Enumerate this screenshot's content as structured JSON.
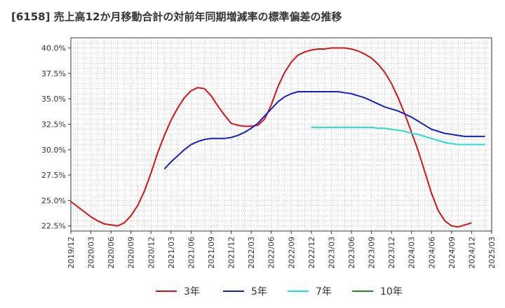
{
  "title": "[6158]  売上高12か月移動合計の対前年同期増減率の標準偏差の推移",
  "chart_data": {
    "type": "line",
    "title": "[6158]  売上高12か月移動合計の対前年同期増減率の標準偏差の推移",
    "xlabel": "",
    "ylabel": "",
    "x_ticks": [
      "2019/12",
      "2020/03",
      "2020/06",
      "2020/09",
      "2020/12",
      "2021/03",
      "2021/06",
      "2021/09",
      "2021/12",
      "2022/03",
      "2022/06",
      "2022/09",
      "2022/12",
      "2023/03",
      "2023/06",
      "2023/09",
      "2023/12",
      "2024/03",
      "2024/06",
      "2024/09",
      "2024/12",
      "2025/03"
    ],
    "y_ticks": [
      "22.5%",
      "25.0%",
      "27.5%",
      "30.0%",
      "32.5%",
      "35.0%",
      "37.5%",
      "40.0%"
    ],
    "y_tick_values": [
      22.5,
      25.0,
      27.5,
      30.0,
      32.5,
      35.0,
      37.5,
      40.0
    ],
    "ylim": [
      22.0,
      41.0
    ],
    "x_start": "2019/12",
    "x_end": "2025/03",
    "grid": true,
    "legend_position": "bottom",
    "series": [
      {
        "name": "3年",
        "color": "#dd1111",
        "start": "2019/12",
        "values": [
          24.9,
          24.4,
          23.9,
          23.4,
          23.0,
          22.7,
          22.6,
          22.5,
          22.8,
          23.5,
          24.5,
          25.9,
          27.7,
          29.7,
          31.4,
          32.9,
          34.1,
          35.1,
          35.8,
          36.1,
          36.0,
          35.3,
          34.3,
          33.4,
          32.6,
          32.4,
          32.3,
          32.3,
          32.4,
          33.0,
          34.4,
          36.2,
          37.6,
          38.6,
          39.3,
          39.6,
          39.8,
          39.9,
          39.9,
          40.0,
          40.0,
          40.0,
          39.9,
          39.7,
          39.4,
          39.0,
          38.4,
          37.6,
          36.5,
          35.1,
          33.5,
          31.7,
          29.9,
          27.8,
          25.7,
          24.0,
          23.0,
          22.5,
          22.4,
          22.6,
          22.8
        ]
      },
      {
        "name": "5年",
        "color": "#1122cc",
        "start": "2021/02",
        "values": [
          28.1,
          28.8,
          29.4,
          30.0,
          30.5,
          30.8,
          31.0,
          31.1,
          31.1,
          31.1,
          31.2,
          31.4,
          31.7,
          32.1,
          32.6,
          33.3,
          34.0,
          34.7,
          35.2,
          35.5,
          35.7,
          35.7,
          35.7,
          35.7,
          35.7,
          35.7,
          35.7,
          35.6,
          35.5,
          35.3,
          35.1,
          34.8,
          34.5,
          34.2,
          34.0,
          33.8,
          33.5,
          33.2,
          32.8,
          32.4,
          32.0,
          31.8,
          31.6,
          31.5,
          31.4,
          31.3,
          31.3,
          31.3,
          31.3
        ]
      },
      {
        "name": "7年",
        "color": "#22dddd",
        "start": "2022/12",
        "values": [
          32.2,
          32.2,
          32.2,
          32.2,
          32.2,
          32.2,
          32.2,
          32.2,
          32.2,
          32.2,
          32.1,
          32.1,
          32.0,
          31.9,
          31.8,
          31.6,
          31.5,
          31.3,
          31.1,
          30.9,
          30.7,
          30.6,
          30.5,
          30.5,
          30.5,
          30.5,
          30.5
        ]
      },
      {
        "name": "10年",
        "color": "#228822",
        "start": "2019/12",
        "values": []
      }
    ]
  }
}
